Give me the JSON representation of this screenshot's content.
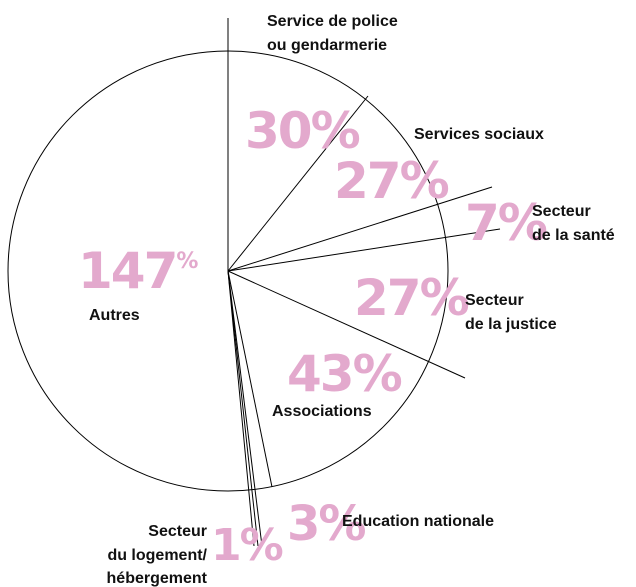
{
  "colors": {
    "line": "#000000",
    "percent": "#e3a9cd",
    "label": "#111111"
  },
  "chart_data": {
    "type": "pie",
    "title": "",
    "slices": [
      {
        "label_lines": [
          "Service de police",
          "ou gendarmerie"
        ],
        "value_text": "30%",
        "value": 30
      },
      {
        "label_lines": [
          "Services sociaux"
        ],
        "value_text": "27%",
        "value": 27
      },
      {
        "label_lines": [
          "Secteur",
          "de la santé"
        ],
        "value_text": "7%",
        "value": 7
      },
      {
        "label_lines": [
          "Secteur",
          "de la justice"
        ],
        "value_text": "27%",
        "value": 27
      },
      {
        "label_lines": [
          "Associations"
        ],
        "value_text": "43%",
        "value": 43
      },
      {
        "label_lines": [
          "Education nationale"
        ],
        "value_text": "3%",
        "value": 3
      },
      {
        "label_lines": [
          "Secteur",
          "du logement/",
          "hébergement"
        ],
        "value_text": "1%",
        "value": 1
      },
      {
        "label_lines": [
          "Autres"
        ],
        "value_text": "147%",
        "value": 147
      }
    ]
  }
}
